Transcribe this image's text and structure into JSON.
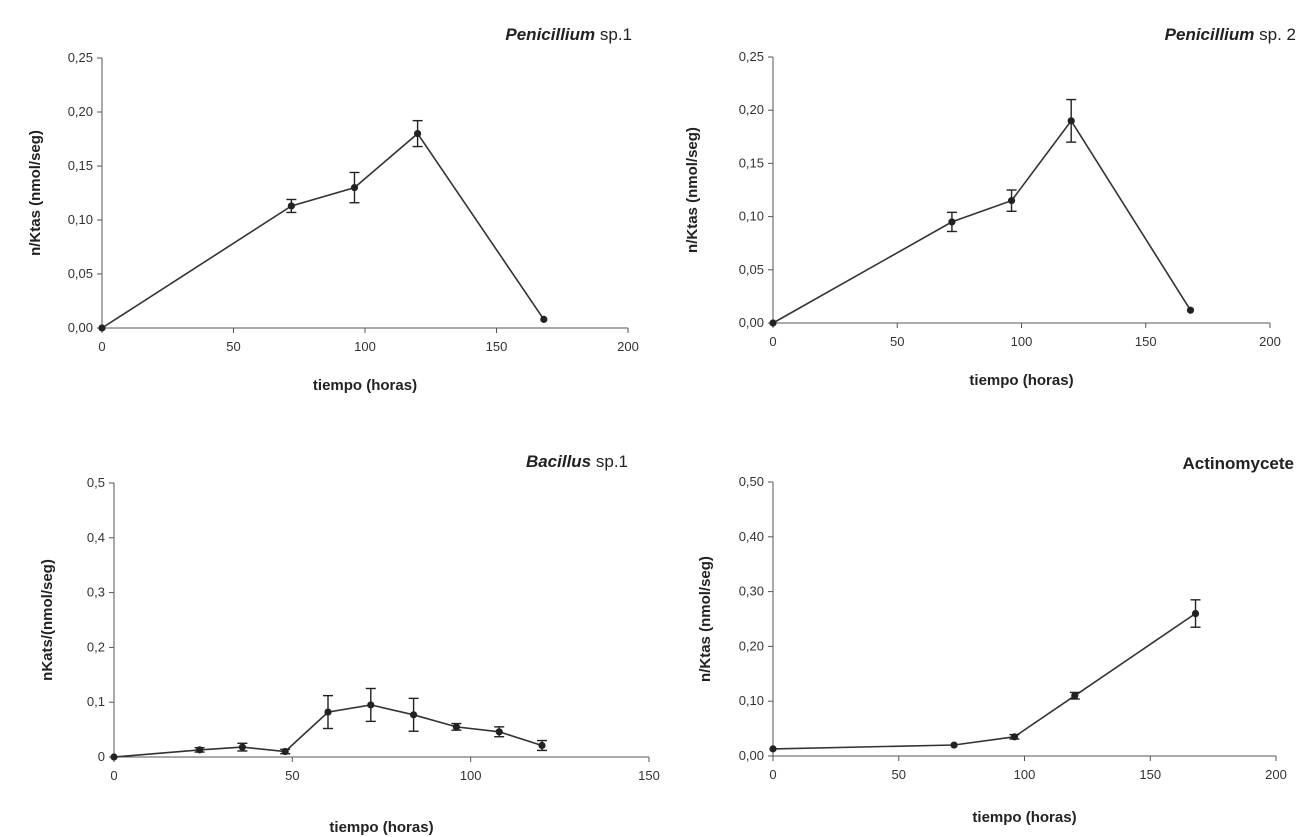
{
  "chart_data": [
    {
      "type": "line",
      "title": {
        "italic": "Penicillium",
        "rest": " sp.1"
      },
      "xlabel": "tiempo (horas)",
      "ylabel": "n/Ktas (nmol/seg)",
      "xlim": [
        0,
        200
      ],
      "ylim": [
        0,
        0.25
      ],
      "xticks": [
        "0",
        "50",
        "100",
        "150",
        "200"
      ],
      "yticks": [
        "0,00",
        "0,05",
        "0,10",
        "0,15",
        "0,20",
        "0,25"
      ],
      "grid": false,
      "series": [
        {
          "x": [
            0,
            72,
            96,
            120,
            168
          ],
          "y": [
            0.0,
            0.113,
            0.13,
            0.18,
            0.008
          ],
          "err": [
            0,
            0.006,
            0.014,
            0.012,
            0
          ]
        }
      ]
    },
    {
      "type": "line",
      "title": {
        "italic": "Penicillium",
        "rest": " sp. 2"
      },
      "xlabel": "tiempo (horas)",
      "ylabel": "n/Ktas (nmol/seg)",
      "xlim": [
        0,
        200
      ],
      "ylim": [
        0,
        0.25
      ],
      "xticks": [
        "0",
        "50",
        "100",
        "150",
        "200"
      ],
      "yticks": [
        "0,00",
        "0,05",
        "0,10",
        "0,15",
        "0,20",
        "0,25"
      ],
      "grid": false,
      "series": [
        {
          "x": [
            0,
            72,
            96,
            120,
            168
          ],
          "y": [
            0.0,
            0.095,
            0.115,
            0.19,
            0.012
          ],
          "err": [
            0,
            0.009,
            0.01,
            0.02,
            0
          ]
        }
      ]
    },
    {
      "type": "line",
      "title": {
        "italic": "Bacillus",
        "rest": "  sp.1"
      },
      "xlabel": "tiempo (horas)",
      "ylabel": "nKats/(nmol/seg)",
      "xlim": [
        0,
        150
      ],
      "ylim": [
        0,
        0.5
      ],
      "xticks": [
        "0",
        "50",
        "100",
        "150"
      ],
      "yticks": [
        "0",
        "0,1",
        "0,2",
        "0,3",
        "0,4",
        "0,5"
      ],
      "grid": false,
      "series": [
        {
          "x": [
            0,
            24,
            36,
            48,
            60,
            72,
            84,
            96,
            108,
            120
          ],
          "y": [
            0.0,
            0.013,
            0.018,
            0.01,
            0.082,
            0.095,
            0.077,
            0.055,
            0.046,
            0.021
          ],
          "err": [
            0,
            0.004,
            0.007,
            0.004,
            0.03,
            0.03,
            0.03,
            0.006,
            0.009,
            0.009
          ]
        }
      ]
    },
    {
      "type": "line",
      "title": {
        "bold": "Actinomycete"
      },
      "xlabel": "tiempo (horas)",
      "ylabel": "n/Ktas (nmol/seg)",
      "xlim": [
        0,
        200
      ],
      "ylim": [
        0,
        0.5
      ],
      "xticks": [
        "0",
        "50",
        "100",
        "150",
        "200"
      ],
      "yticks": [
        "0,00",
        "0,10",
        "0,20",
        "0,30",
        "0,40",
        "0,50"
      ],
      "grid": false,
      "series": [
        {
          "x": [
            0,
            72,
            96,
            120,
            168
          ],
          "y": [
            0.013,
            0.02,
            0.035,
            0.11,
            0.26
          ],
          "err": [
            0,
            0,
            0.004,
            0.006,
            0.025
          ]
        }
      ]
    }
  ]
}
